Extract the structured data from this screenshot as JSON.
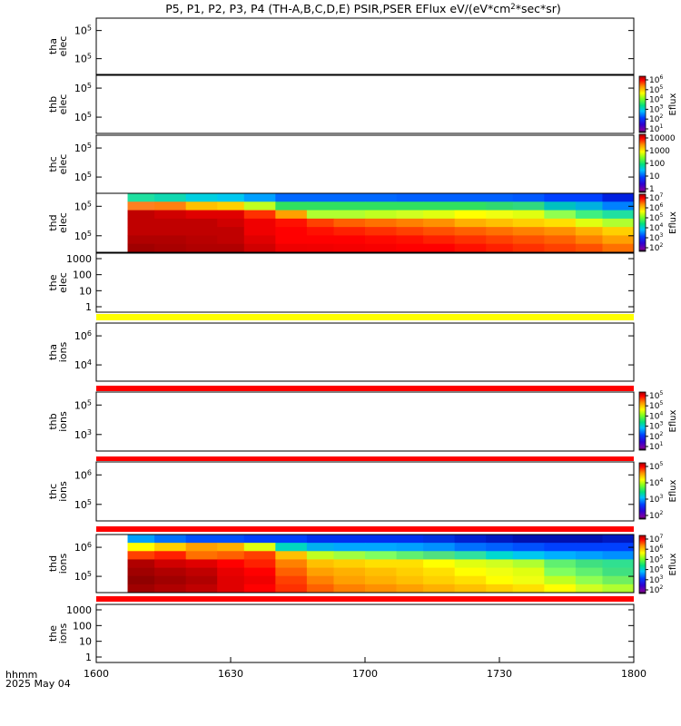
{
  "chart_data": {
    "type": "heatmap",
    "title": "P5, P1, P2, P3, P4 (TH-A,B,C,D,E) PSIR,PSER EFlux eV/(eV*cm^2*sec*sr)",
    "title_parts": [
      "P5, P1, P2, P3, P4 (TH-A,B,C,D,E) PSIR,PSER EFlux eV/(eV*cm",
      "2",
      "*sec*sr)"
    ],
    "x_axis": {
      "ticks": [
        "1600",
        "1630",
        "1700",
        "1730",
        "1800"
      ],
      "label_line1": "hhmm",
      "label_line2": "2025 May 04"
    },
    "panels": [
      {
        "id": "tha-elec",
        "ylabel": [
          "tha",
          "elec"
        ],
        "yticks": [
          {
            "base": "10",
            "exp": "5"
          },
          {
            "base": "10",
            "exp": "5"
          }
        ]
      },
      {
        "id": "thb-elec",
        "ylabel": [
          "thb",
          "elec"
        ],
        "yticks": [
          {
            "base": "10",
            "exp": "5"
          },
          {
            "base": "10",
            "exp": "5"
          }
        ],
        "colorbar": {
          "label": "Eflux",
          "ticks": [
            {
              "base": "10",
              "exp": "6"
            },
            {
              "base": "10",
              "exp": "5"
            },
            {
              "base": "10",
              "exp": "4"
            },
            {
              "base": "10",
              "exp": "3"
            },
            {
              "base": "10",
              "exp": "2"
            },
            {
              "base": "10",
              "exp": "1"
            }
          ]
        }
      },
      {
        "id": "thc-elec",
        "ylabel": [
          "thc",
          "elec"
        ],
        "yticks": [
          {
            "base": "10",
            "exp": "5"
          },
          {
            "base": "10",
            "exp": "5"
          }
        ],
        "colorbar": {
          "label": "",
          "ticks": [
            {
              "text": "10000"
            },
            {
              "text": "1000"
            },
            {
              "text": "100"
            },
            {
              "text": "10"
            },
            {
              "text": "1"
            }
          ]
        }
      },
      {
        "id": "thd-elec",
        "ylabel": [
          "thd",
          "elec"
        ],
        "yticks": [
          {
            "base": "10",
            "exp": "5"
          },
          {
            "base": "10",
            "exp": "5"
          }
        ],
        "colorbar": {
          "label": "Eflux",
          "ticks": [
            {
              "base": "10",
              "exp": "7"
            },
            {
              "base": "10",
              "exp": "6"
            },
            {
              "base": "10",
              "exp": "5"
            },
            {
              "base": "10",
              "exp": "4"
            },
            {
              "base": "10",
              "exp": "3"
            },
            {
              "base": "10",
              "exp": "2"
            }
          ]
        },
        "data_start": "1607"
      },
      {
        "id": "the-elec",
        "ylabel": [
          "the",
          "elec"
        ],
        "yticks": [
          {
            "text": "1000"
          },
          {
            "text": "100"
          },
          {
            "text": "10"
          },
          {
            "text": "1"
          }
        ]
      },
      {
        "id": "tha-ions",
        "ylabel": [
          "tha",
          "ions"
        ],
        "yticks": [
          {
            "base": "10",
            "exp": "6"
          },
          {
            "base": "10",
            "exp": "4"
          }
        ]
      },
      {
        "id": "thb-ions",
        "ylabel": [
          "thb",
          "ions"
        ],
        "yticks": [
          {
            "base": "10",
            "exp": "5"
          },
          {
            "base": "10",
            "exp": "3"
          }
        ],
        "colorbar": {
          "label": "Eflux",
          "ticks": [
            {
              "base": "10",
              "exp": "5"
            },
            {
              "base": "10",
              "exp": "5"
            },
            {
              "base": "10",
              "exp": "4"
            },
            {
              "base": "10",
              "exp": "3"
            },
            {
              "base": "10",
              "exp": "2"
            },
            {
              "base": "10",
              "exp": "1"
            }
          ]
        }
      },
      {
        "id": "thc-ions",
        "ylabel": [
          "thc",
          "ions"
        ],
        "yticks": [
          {
            "base": "10",
            "exp": "6"
          },
          {
            "base": "10",
            "exp": "5"
          }
        ],
        "colorbar": {
          "label": "Eflux",
          "ticks": [
            {
              "base": "10",
              "exp": "5"
            },
            {
              "base": "10",
              "exp": "4"
            },
            {
              "base": "10",
              "exp": "3"
            },
            {
              "base": "10",
              "exp": "2"
            }
          ]
        }
      },
      {
        "id": "thd-ions",
        "ylabel": [
          "thd",
          "ions"
        ],
        "yticks": [
          {
            "base": "10",
            "exp": "6"
          },
          {
            "base": "10",
            "exp": "5"
          }
        ],
        "colorbar": {
          "label": "Eflux",
          "ticks": [
            {
              "base": "10",
              "exp": "7"
            },
            {
              "base": "10",
              "exp": "6"
            },
            {
              "base": "10",
              "exp": "5"
            },
            {
              "base": "10",
              "exp": "4"
            },
            {
              "base": "10",
              "exp": "3"
            },
            {
              "base": "10",
              "exp": "2"
            }
          ]
        },
        "data_start": "1607"
      },
      {
        "id": "the-ions",
        "ylabel": [
          "the",
          "ions"
        ],
        "yticks": [
          {
            "text": "1000"
          },
          {
            "text": "100"
          },
          {
            "text": "10"
          },
          {
            "text": "1"
          }
        ]
      }
    ],
    "separator_bands": [
      {
        "after": "the-elec",
        "color": "#ffff00"
      },
      {
        "after": "tha-ions",
        "color": "#ff0000"
      },
      {
        "after": "thb-ions",
        "color": "#ff0000"
      },
      {
        "after": "thc-ions",
        "color": "#ff0000"
      },
      {
        "after": "thd-ions",
        "color": "#ff0000"
      }
    ],
    "spectrograms": {
      "thd-elec": {
        "panel": "thd-elec",
        "time_bins": [
          "1607",
          "1613",
          "1620",
          "1627",
          "1633",
          "1640",
          "1647",
          "1653",
          "1700",
          "1707",
          "1713",
          "1720",
          "1727",
          "1733",
          "1740",
          "1747",
          "1753"
        ],
        "rows": [
          [
            "#20e0a0",
            "#10d8b0",
            "#00d0e0",
            "#00c8f0",
            "#00a0ff",
            "#0068ff",
            "#0068ff",
            "#0068ff",
            "#0068ff",
            "#0060ff",
            "#0060ff",
            "#0060ff",
            "#0060ff",
            "#0058ff",
            "#0040ff",
            "#0040ff",
            "#0020e0"
          ],
          [
            "#ff8020",
            "#ff8010",
            "#ffc000",
            "#ffd000",
            "#c0ff20",
            "#30e060",
            "#30e060",
            "#30e060",
            "#30e060",
            "#30e060",
            "#30e060",
            "#30e060",
            "#30d870",
            "#30d880",
            "#00c0c0",
            "#00b0e0",
            "#0080ff"
          ],
          [
            "#c00000",
            "#d00000",
            "#e00000",
            "#e00000",
            "#ff3000",
            "#ffa000",
            "#b0ff30",
            "#b0ff30",
            "#c0ff20",
            "#d0ff20",
            "#e0ff10",
            "#ffff00",
            "#f0ff10",
            "#e0ff10",
            "#90ff50",
            "#40f080",
            "#20e0a0"
          ],
          [
            "#c00000",
            "#c00000",
            "#c00000",
            "#d00000",
            "#f00000",
            "#ff1000",
            "#ff4000",
            "#ff6000",
            "#ff7000",
            "#ff8000",
            "#ff9000",
            "#ffb000",
            "#ffc000",
            "#ffd000",
            "#ffe000",
            "#e0ff10",
            "#b0ff30"
          ],
          [
            "#c00000",
            "#c00000",
            "#c00000",
            "#c00000",
            "#f00000",
            "#ff0000",
            "#ff1000",
            "#ff2000",
            "#ff3000",
            "#ff4000",
            "#ff5000",
            "#ff6000",
            "#ff7000",
            "#ff8000",
            "#ff9000",
            "#ffb000",
            "#ffd000"
          ],
          [
            "#b00000",
            "#b00000",
            "#b80000",
            "#c00000",
            "#e00000",
            "#ff0000",
            "#ff0000",
            "#ff0000",
            "#ff0800",
            "#ff1000",
            "#ff2000",
            "#ff3000",
            "#ff4000",
            "#ff5000",
            "#ff6000",
            "#ff8000",
            "#ffa000"
          ],
          [
            "#a00000",
            "#a80000",
            "#b00000",
            "#b00000",
            "#d00000",
            "#ee0000",
            "#f00000",
            "#f40000",
            "#f80000",
            "#ff0000",
            "#ff0000",
            "#ff1000",
            "#ff2000",
            "#ff3000",
            "#ff4000",
            "#ff5000",
            "#ff7000"
          ]
        ]
      },
      "thd-ions": {
        "panel": "thd-ions",
        "time_bins": [
          "1607",
          "1613",
          "1620",
          "1627",
          "1633",
          "1640",
          "1647",
          "1653",
          "1700",
          "1707",
          "1713",
          "1720",
          "1727",
          "1733",
          "1740",
          "1747",
          "1753"
        ],
        "rows": [
          [
            "#00a0ff",
            "#0070ff",
            "#0050ff",
            "#0050ff",
            "#0040ff",
            "#0040ff",
            "#0030f0",
            "#0030f0",
            "#0030f0",
            "#0030f0",
            "#0030e0",
            "#0020d0",
            "#0018c0",
            "#0010b0",
            "#0010b0",
            "#0010b0",
            "#0018c0"
          ],
          [
            "#ffff00",
            "#ffd000",
            "#ffa000",
            "#ffb000",
            "#e0ff10",
            "#00d8c0",
            "#00b0f0",
            "#00a8ff",
            "#00a8ff",
            "#00a0ff",
            "#0090ff",
            "#0070ff",
            "#0060ff",
            "#0050ff",
            "#0040ff",
            "#0040ff",
            "#0040ff"
          ],
          [
            "#ff4000",
            "#ff2000",
            "#ff7000",
            "#ff6000",
            "#ff4000",
            "#ffc000",
            "#c0ff20",
            "#a0ff40",
            "#80ff60",
            "#60f070",
            "#50e080",
            "#30e0a0",
            "#00d8d0",
            "#00c8f0",
            "#00b0ff",
            "#00a0ff",
            "#0090ff"
          ],
          [
            "#b00000",
            "#d00000",
            "#e00000",
            "#ff0000",
            "#ff2000",
            "#ff8000",
            "#ffc000",
            "#ffd000",
            "#ffe000",
            "#ffe000",
            "#ffff00",
            "#e0ff10",
            "#d0ff20",
            "#b0ff30",
            "#60f070",
            "#40e080",
            "#30e090"
          ],
          [
            "#a00000",
            "#b00000",
            "#c00000",
            "#e80000",
            "#ff0000",
            "#ff6000",
            "#ffa000",
            "#ffb000",
            "#ffc000",
            "#ffd000",
            "#ffe000",
            "#ffff00",
            "#f0ff10",
            "#e0ff10",
            "#80ff60",
            "#60f070",
            "#40e080"
          ],
          [
            "#900000",
            "#a00000",
            "#b00000",
            "#e00000",
            "#f00000",
            "#ff4000",
            "#ff8000",
            "#ffa000",
            "#ffb000",
            "#ffc000",
            "#ffd000",
            "#ffe000",
            "#ffff00",
            "#f0ff10",
            "#c0ff20",
            "#90ff50",
            "#70f060"
          ],
          [
            "#a00000",
            "#b00000",
            "#c00000",
            "#e00000",
            "#ff0000",
            "#ff3000",
            "#ff6000",
            "#ff8000",
            "#ff9000",
            "#ffa000",
            "#ffb000",
            "#ffc000",
            "#ffd000",
            "#ffe000",
            "#ffff00",
            "#d0ff20",
            "#b0ff30"
          ]
        ]
      }
    }
  }
}
